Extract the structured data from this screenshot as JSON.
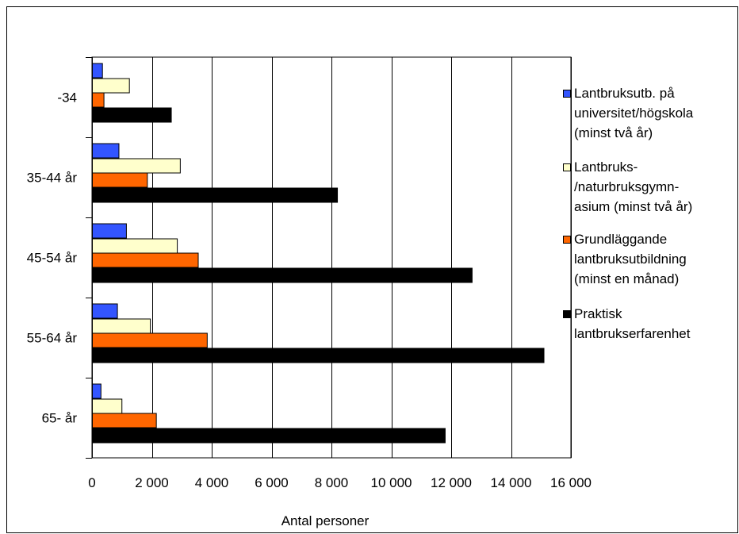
{
  "chart_data": {
    "type": "bar",
    "orientation": "horizontal",
    "categories": [
      "-34",
      "35-44 år",
      "45-54 år",
      "55-64 år",
      "65- år"
    ],
    "series": [
      {
        "name": "Lantbruksutb. på\nuniversitet/högskola\n(minst två år)",
        "color": "#3355ff",
        "values": [
          350,
          900,
          1150,
          850,
          300
        ]
      },
      {
        "name": "Lantbruks-\n/naturbruksgymn-\nasium (minst två år)",
        "color": "#ffffcc",
        "values": [
          1250,
          2950,
          2850,
          1950,
          1000
        ]
      },
      {
        "name": "Grundläggande\nlantbruksutbildning\n(minst en månad)",
        "color": "#ff6600",
        "values": [
          400,
          1850,
          3550,
          3850,
          2150
        ]
      },
      {
        "name": "Praktisk\nlantbrukserfarenhet",
        "color": "#000000",
        "values": [
          2650,
          8200,
          12700,
          15100,
          11800
        ]
      }
    ],
    "xlim": [
      0,
      16000
    ],
    "xticks": [
      0,
      2000,
      4000,
      6000,
      8000,
      10000,
      12000,
      14000,
      16000
    ],
    "xtick_labels": [
      "0",
      "2 000",
      "4 000",
      "6 000",
      "8 000",
      "10 000",
      "12 000",
      "14 000",
      "16 000"
    ],
    "xlabel": "Antal personer",
    "ylabel": "",
    "title": "",
    "grid": "vertical",
    "legend_position": "right"
  }
}
